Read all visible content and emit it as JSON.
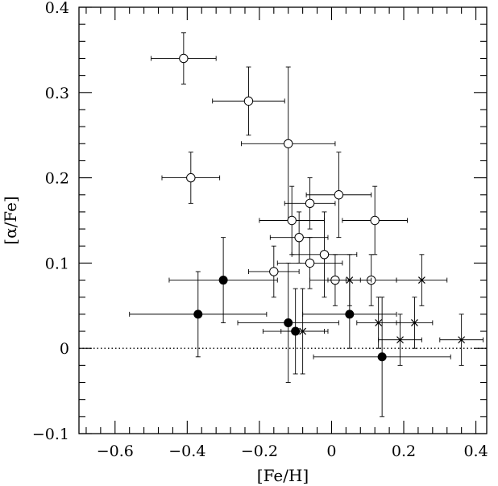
{
  "chart_data": {
    "type": "scatter",
    "xlabel": "[Fe/H]",
    "ylabel": "[α/Fe]",
    "xlim": [
      -0.7,
      0.43
    ],
    "ylim": [
      -0.1,
      0.4
    ],
    "x_ticks": [
      {
        "value": -0.6,
        "label": "−0.6"
      },
      {
        "value": -0.4,
        "label": "−0.4"
      },
      {
        "value": -0.2,
        "label": "−0.2"
      },
      {
        "value": 0,
        "label": "0"
      },
      {
        "value": 0.2,
        "label": "0.2"
      },
      {
        "value": 0.4,
        "label": "0.4"
      }
    ],
    "y_ticks": [
      {
        "value": -0.1,
        "label": "−0.1"
      },
      {
        "value": 0,
        "label": "0"
      },
      {
        "value": 0.1,
        "label": "0.1"
      },
      {
        "value": 0.2,
        "label": "0.2"
      },
      {
        "value": 0.3,
        "label": "0.3"
      },
      {
        "value": 0.4,
        "label": "0.4"
      }
    ],
    "reference_line": {
      "y": 0,
      "style": "dotted"
    },
    "series": [
      {
        "marker": "open-circle",
        "points": [
          {
            "x": -0.41,
            "y": 0.34,
            "xerr": 0.09,
            "yerr": 0.03
          },
          {
            "x": -0.39,
            "y": 0.2,
            "xerr": 0.08,
            "yerr": 0.03
          },
          {
            "x": -0.23,
            "y": 0.29,
            "xerr": 0.1,
            "yerr": 0.04
          },
          {
            "x": -0.12,
            "y": 0.24,
            "xerr": 0.13,
            "yerr": 0.09
          },
          {
            "x": -0.11,
            "y": 0.15,
            "xerr": 0.09,
            "yerr": 0.04
          },
          {
            "x": -0.06,
            "y": 0.17,
            "xerr": 0.07,
            "yerr": 0.03
          },
          {
            "x": 0.02,
            "y": 0.18,
            "xerr": 0.09,
            "yerr": 0.05
          },
          {
            "x": 0.12,
            "y": 0.15,
            "xerr": 0.09,
            "yerr": 0.04
          },
          {
            "x": -0.09,
            "y": 0.13,
            "xerr": 0.08,
            "yerr": 0.03
          },
          {
            "x": -0.16,
            "y": 0.09,
            "xerr": 0.07,
            "yerr": 0.03
          },
          {
            "x": -0.06,
            "y": 0.1,
            "xerr": 0.09,
            "yerr": 0.03
          },
          {
            "x": -0.02,
            "y": 0.11,
            "xerr": 0.09,
            "yerr": 0.05
          },
          {
            "x": 0.01,
            "y": 0.08,
            "xerr": 0.07,
            "yerr": 0.03
          },
          {
            "x": 0.11,
            "y": 0.08,
            "xerr": 0.07,
            "yerr": 0.03
          }
        ]
      },
      {
        "marker": "filled-circle",
        "points": [
          {
            "x": -0.37,
            "y": 0.04,
            "xerr": 0.19,
            "yerr": 0.05
          },
          {
            "x": -0.3,
            "y": 0.08,
            "xerr": 0.15,
            "yerr": 0.05
          },
          {
            "x": -0.12,
            "y": 0.03,
            "xerr": 0.14,
            "yerr": 0.07
          },
          {
            "x": -0.1,
            "y": 0.02,
            "xerr": 0.09,
            "yerr": 0.05
          },
          {
            "x": 0.05,
            "y": 0.04,
            "xerr": 0.13,
            "yerr": 0.04
          },
          {
            "x": 0.14,
            "y": -0.01,
            "xerr": 0.19,
            "yerr": 0.07
          }
        ]
      },
      {
        "marker": "x",
        "points": [
          {
            "x": -0.08,
            "y": 0.02,
            "xerr": 0.06,
            "yerr": 0.05
          },
          {
            "x": 0.05,
            "y": 0.08,
            "xerr": 0.06,
            "yerr": 0.03
          },
          {
            "x": 0.13,
            "y": 0.03,
            "xerr": 0.06,
            "yerr": 0.03
          },
          {
            "x": 0.19,
            "y": 0.01,
            "xerr": 0.06,
            "yerr": 0.03
          },
          {
            "x": 0.23,
            "y": 0.03,
            "xerr": 0.05,
            "yerr": 0.03
          },
          {
            "x": 0.25,
            "y": 0.08,
            "xerr": 0.07,
            "yerr": 0.03
          },
          {
            "x": 0.36,
            "y": 0.01,
            "xerr": 0.06,
            "yerr": 0.03
          }
        ]
      }
    ]
  }
}
